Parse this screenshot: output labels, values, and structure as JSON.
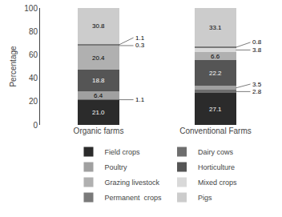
{
  "chart_data": {
    "type": "bar",
    "stacked": true,
    "categories": [
      "Organic farms",
      "Conventional Farms"
    ],
    "series": [
      {
        "name": "Field crops",
        "color": "#2b2b2b",
        "values": [
          21.0,
          27.1
        ],
        "value_labels": [
          "21.0",
          "27.1"
        ]
      },
      {
        "name": "Dairy cows",
        "color": "#6e6e6e",
        "values": [
          1.1,
          2.8
        ],
        "value_labels": [
          "1.1",
          "2.8"
        ]
      },
      {
        "name": "Poultry",
        "color": "#a0a0a0",
        "values": [
          6.4,
          3.5
        ],
        "value_labels": [
          "6.4",
          "3.5"
        ]
      },
      {
        "name": "Horticulture",
        "color": "#555555",
        "values": [
          18.8,
          22.2
        ],
        "value_labels": [
          "18.8",
          "22.2"
        ]
      },
      {
        "name": "Grazing livestock",
        "color": "#b0b0b0",
        "values": [
          20.4,
          6.6
        ],
        "value_labels": [
          "20.4",
          "6.6"
        ]
      },
      {
        "name": "Mixed crops",
        "color": "#d9d9d9",
        "values": [
          0.3,
          3.8
        ],
        "value_labels": [
          "0.3",
          "3.8"
        ]
      },
      {
        "name": "Permanent  crops",
        "color": "#7a7a7a",
        "values": [
          1.1,
          0.8
        ],
        "value_labels": [
          "1.1",
          "0.8"
        ]
      },
      {
        "name": "Pigs",
        "color": "#cccccc",
        "values": [
          30.8,
          33.1
        ],
        "value_labels": [
          "30.8",
          "33.1"
        ]
      }
    ],
    "ylabel": "Percentage",
    "ylim": [
      0,
      100
    ],
    "yticks": [
      0,
      20,
      40,
      60,
      80,
      100
    ],
    "grid": false,
    "legend": "bottom",
    "data_labels": true
  }
}
